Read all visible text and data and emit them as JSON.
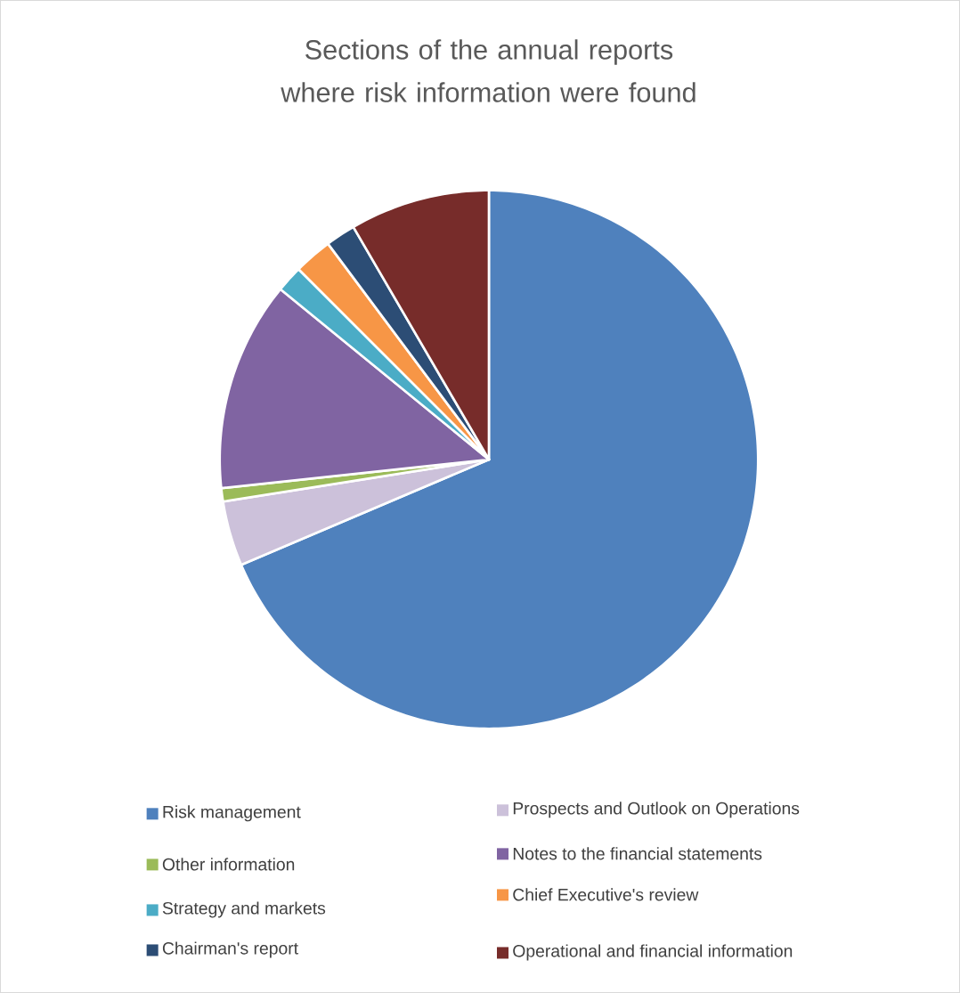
{
  "chart_data": {
    "type": "pie",
    "title": "Sections of the annual reports where risk information were found",
    "categories": [
      "Risk management",
      "Prospects and Outlook on Operations",
      "Other information",
      "Notes to the financial statements",
      "Strategy and markets",
      "Chief Executive's review",
      "Chairman's report",
      "Operational and financial information"
    ],
    "values": [
      68.6,
      3.9,
      0.8,
      12.6,
      1.6,
      2.3,
      1.8,
      8.4
    ],
    "colors": [
      "#4f81bd",
      "#ccc1da",
      "#9bbb59",
      "#8064a2",
      "#4bacc6",
      "#f79646",
      "#2c4d75",
      "#772c2a"
    ],
    "legend": "bottom"
  }
}
